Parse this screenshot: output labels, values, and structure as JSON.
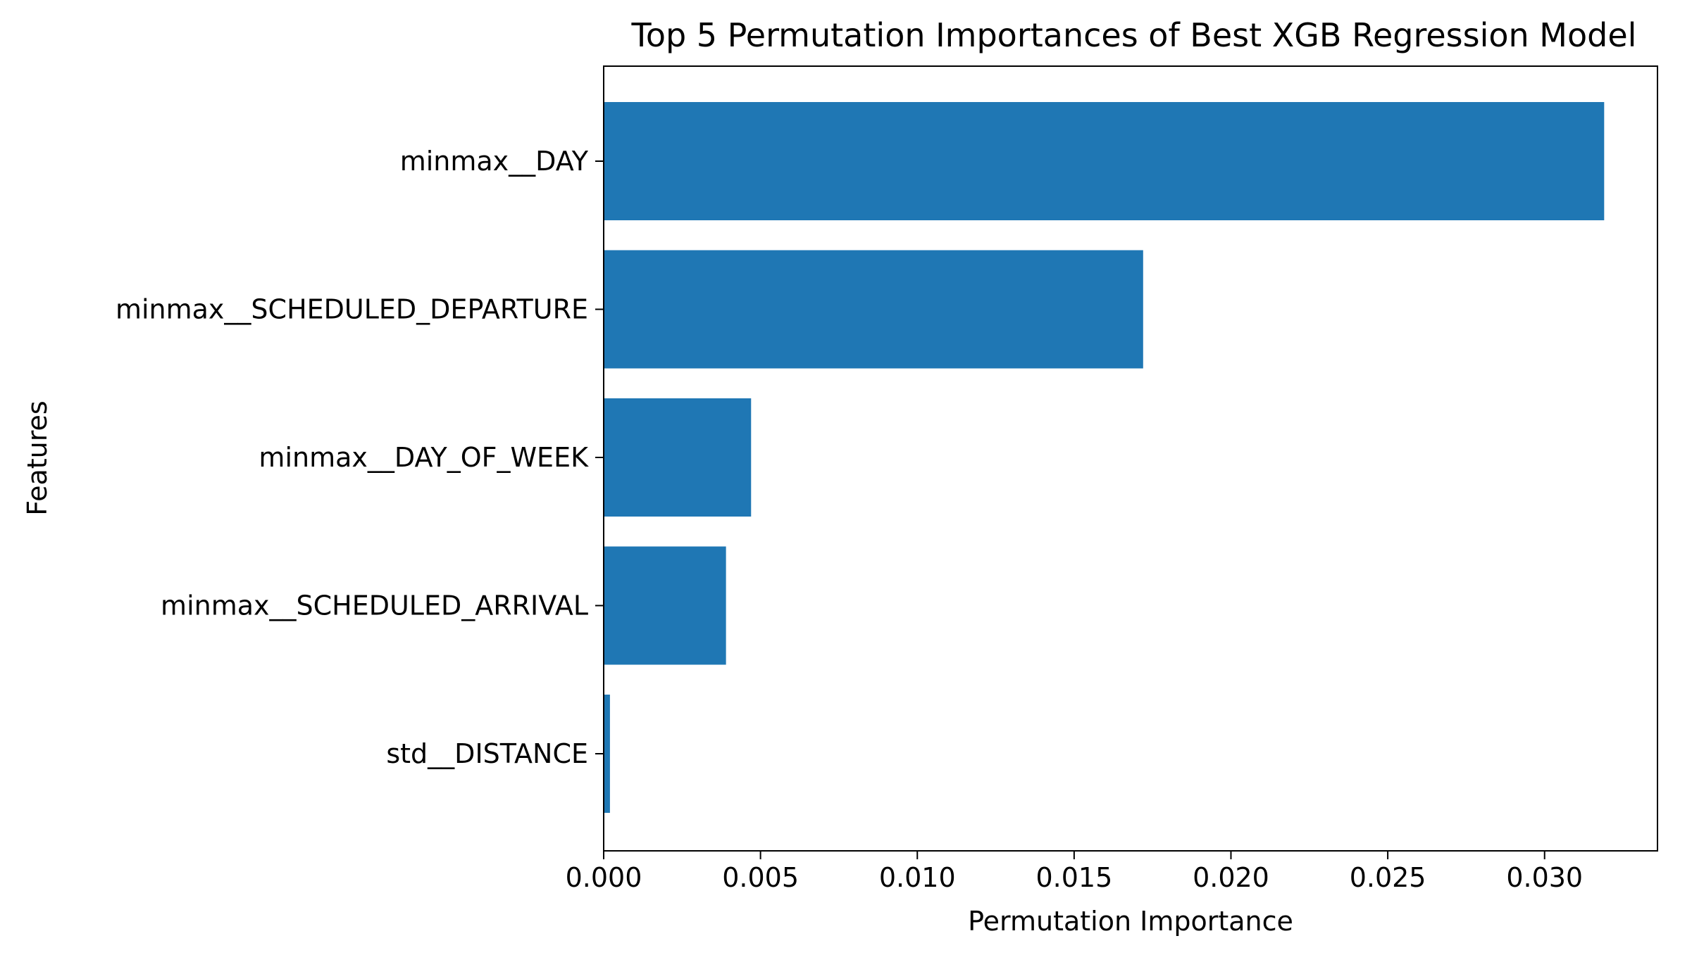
{
  "chart_data": {
    "type": "bar",
    "orientation": "horizontal",
    "title": "Top 5 Permutation Importances of Best XGB Regression Model",
    "xlabel": "Permutation Importance",
    "ylabel": "Features",
    "categories": [
      "minmax__DAY",
      "minmax__SCHEDULED_DEPARTURE",
      "minmax__DAY_OF_WEEK",
      "minmax__SCHEDULED_ARRIVAL",
      "std__DISTANCE"
    ],
    "values": [
      0.0319,
      0.0172,
      0.0047,
      0.0039,
      0.0002
    ],
    "xlim": [
      0,
      0.0336
    ],
    "xticks": [
      0,
      0.005,
      0.01,
      0.015,
      0.02,
      0.025,
      0.03
    ],
    "xtick_labels": [
      "0.000",
      "0.005",
      "0.010",
      "0.015",
      "0.020",
      "0.025",
      "0.030"
    ],
    "bar_color": "#1f77b4",
    "grid": false,
    "legend": "none"
  }
}
